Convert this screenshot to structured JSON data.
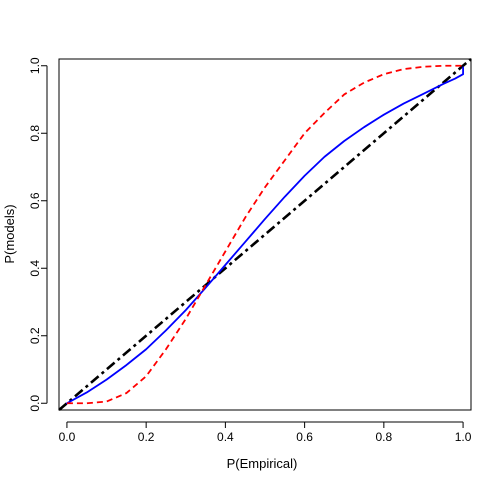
{
  "chart_data": {
    "type": "line",
    "title": "",
    "xlabel": "P(Empirical)",
    "ylabel": "P(models)",
    "xlim": [
      -0.02,
      1.02
    ],
    "ylim": [
      -0.02,
      1.02
    ],
    "x_ticks": [
      0.0,
      0.2,
      0.4,
      0.6,
      0.8,
      1.0
    ],
    "x_tick_labels": [
      "0.0",
      "0.2",
      "0.4",
      "0.6",
      "0.8",
      "1.0"
    ],
    "y_ticks": [
      0.0,
      0.2,
      0.4,
      0.6,
      0.8,
      1.0
    ],
    "y_tick_labels": [
      "0.0",
      "0.2",
      "0.4",
      "0.6",
      "0.8",
      "1.0"
    ],
    "grid": false,
    "legend": "none",
    "series": [
      {
        "color": "#000000",
        "style": "dashdot",
        "x": [
          -0.02,
          1.02
        ],
        "y": [
          -0.02,
          1.02
        ]
      },
      {
        "color": "#0000ff",
        "style": "solid",
        "x": [
          0.0,
          0.05,
          0.1,
          0.15,
          0.2,
          0.25,
          0.3,
          0.35,
          0.4,
          0.45,
          0.5,
          0.55,
          0.6,
          0.65,
          0.7,
          0.75,
          0.8,
          0.85,
          0.9,
          0.95,
          0.98,
          1.0,
          1.0
        ],
        "y": [
          0.0,
          0.032,
          0.07,
          0.113,
          0.16,
          0.216,
          0.276,
          0.342,
          0.41,
          0.478,
          0.546,
          0.612,
          0.674,
          0.73,
          0.777,
          0.818,
          0.855,
          0.888,
          0.917,
          0.946,
          0.962,
          0.975,
          0.995
        ]
      },
      {
        "color": "#ff0000",
        "style": "dashed",
        "x": [
          0.0,
          0.05,
          0.1,
          0.15,
          0.2,
          0.25,
          0.3,
          0.35,
          0.4,
          0.45,
          0.5,
          0.55,
          0.6,
          0.65,
          0.7,
          0.75,
          0.8,
          0.85,
          0.9,
          0.95,
          1.0
        ],
        "y": [
          0.0,
          0.0,
          0.005,
          0.03,
          0.08,
          0.16,
          0.25,
          0.35,
          0.45,
          0.55,
          0.64,
          0.72,
          0.8,
          0.86,
          0.915,
          0.95,
          0.975,
          0.99,
          0.997,
          1.0,
          1.0
        ]
      }
    ]
  }
}
